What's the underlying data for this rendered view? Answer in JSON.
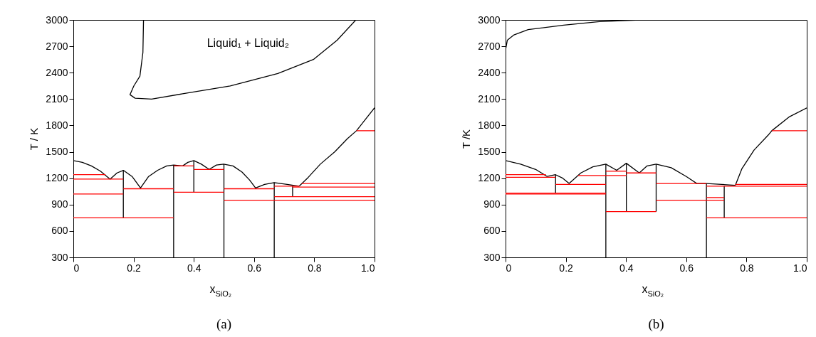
{
  "chart_data": [
    {
      "type": "line",
      "xlabel": "x$_{SiO₂}$",
      "ylabel": "T / K",
      "xlim": [
        0,
        1
      ],
      "ylim": [
        300,
        3000
      ],
      "xticks": [
        0,
        0.2,
        0.4,
        0.6,
        0.8,
        {
          "value": 1,
          "label": "1.0"
        }
      ],
      "yticks": [
        300,
        600,
        900,
        1200,
        1500,
        1800,
        2100,
        2400,
        2700,
        3000
      ],
      "annotations": [
        "Liquid₁ + Liquid₂",
        "(a)"
      ],
      "series": [
        {
          "color": "#000000",
          "x": [
            0.233,
            0.231,
            0.221,
            0.201,
            0.188,
            0.205,
            0.26,
            0.363,
            0.521,
            0.679,
            0.797,
            0.876,
            0.938
          ],
          "values": [
            3000,
            2630,
            2360,
            2250,
            2150,
            2110,
            2100,
            2160,
            2250,
            2390,
            2550,
            2770,
            3000
          ]
        },
        {
          "color": "#000000",
          "x": [
            0,
            0.03,
            0.06,
            0.09,
            0.122,
            0.145,
            0.166,
            0.195,
            0.223,
            0.25,
            0.28,
            0.31,
            0.333,
            0.363,
            0.38,
            0.4,
            0.425,
            0.451,
            0.475,
            0.499,
            0.53,
            0.56,
            0.585,
            0.605,
            0.635,
            0.667,
            0.71,
            0.75
          ],
          "values": [
            1400,
            1380,
            1340,
            1280,
            1190,
            1260,
            1290,
            1220,
            1090,
            1220,
            1290,
            1340,
            1350,
            1340,
            1380,
            1400,
            1360,
            1300,
            1350,
            1360,
            1340,
            1270,
            1180,
            1090,
            1130,
            1150,
            1130,
            1110
          ]
        },
        {
          "color": "#000000",
          "x": [
            0.75,
            0.78,
            0.82,
            0.868,
            0.91,
            0.94,
            1.0
          ],
          "values": [
            1110,
            1210,
            1360,
            1500,
            1650,
            1740,
            2000
          ]
        },
        {
          "color": "#000000",
          "x": [
            0.166,
            0.166
          ],
          "values": [
            1290,
            750
          ]
        },
        {
          "color": "#000000",
          "x": [
            0.333,
            0.333
          ],
          "values": [
            1350,
            300
          ]
        },
        {
          "color": "#000000",
          "x": [
            0.4,
            0.4
          ],
          "values": [
            1400,
            1040
          ]
        },
        {
          "color": "#000000",
          "x": [
            0.5,
            0.5
          ],
          "values": [
            1360,
            300
          ]
        },
        {
          "color": "#000000",
          "x": [
            0.667,
            0.667
          ],
          "values": [
            1150,
            300
          ]
        },
        {
          "color": "#000000",
          "x": [
            0.728,
            0.728
          ],
          "values": [
            1110,
            990
          ]
        },
        {
          "color": "#ff0000",
          "x": [
            0,
            0.107
          ],
          "values": [
            1240,
            1240
          ]
        },
        {
          "color": "#ff0000",
          "x": [
            0,
            0.166
          ],
          "values": [
            1190,
            1190
          ]
        },
        {
          "color": "#ff0000",
          "x": [
            0,
            0.166
          ],
          "values": [
            1020,
            1020
          ]
        },
        {
          "color": "#ff0000",
          "x": [
            0,
            0.333
          ],
          "values": [
            750,
            750
          ]
        },
        {
          "color": "#ff0000",
          "x": [
            0.166,
            0.333
          ],
          "values": [
            1080,
            1080
          ]
        },
        {
          "color": "#ff0000",
          "x": [
            0.333,
            0.4
          ],
          "values": [
            1340,
            1340
          ]
        },
        {
          "color": "#ff0000",
          "x": [
            0.4,
            0.5
          ],
          "values": [
            1300,
            1300
          ]
        },
        {
          "color": "#ff0000",
          "x": [
            0.333,
            0.5
          ],
          "values": [
            1040,
            1040
          ]
        },
        {
          "color": "#ff0000",
          "x": [
            0.5,
            0.667
          ],
          "values": [
            1080,
            1080
          ]
        },
        {
          "color": "#ff0000",
          "x": [
            0.5,
            1.0
          ],
          "values": [
            950,
            950
          ]
        },
        {
          "color": "#ff0000",
          "x": [
            0.667,
            0.75
          ],
          "values": [
            1110,
            1110
          ]
        },
        {
          "color": "#ff0000",
          "x": [
            0.758,
            1.0
          ],
          "values": [
            1140,
            1140
          ]
        },
        {
          "color": "#ff0000",
          "x": [
            0.728,
            1.0
          ],
          "values": [
            1100,
            1100
          ]
        },
        {
          "color": "#ff0000",
          "x": [
            0.667,
            1.0
          ],
          "values": [
            990,
            990
          ]
        },
        {
          "color": "#ff0000",
          "x": [
            0.94,
            1.0
          ],
          "values": [
            1740,
            1740
          ]
        }
      ]
    },
    {
      "type": "line",
      "xlabel": "x$_{SiO₂}$",
      "ylabel": "T /K",
      "xlim": [
        0,
        1
      ],
      "ylim": [
        300,
        3000
      ],
      "xticks": [
        0,
        0.2,
        0.4,
        0.6,
        0.8,
        {
          "value": 1,
          "label": "1.0"
        }
      ],
      "yticks": [
        300,
        600,
        900,
        1200,
        1500,
        1800,
        2100,
        2400,
        2700,
        3000
      ],
      "annotations": [
        "(b)"
      ],
      "series": [
        {
          "color": "#000000",
          "x": [
            0,
            0,
            0.006,
            0.028,
            0.075,
            0.193,
            0.312,
            0.446
          ],
          "values": [
            2100,
            2660,
            2770,
            2830,
            2890,
            2940,
            2980,
            3000
          ]
        },
        {
          "color": "#000000",
          "x": [
            0,
            0,
            0.05,
            0.1,
            0.138,
            0.166,
            0.19,
            0.211,
            0.25,
            0.29,
            0.333,
            0.369,
            0.401,
            0.444,
            0.47,
            0.5,
            0.55,
            0.6,
            0.635,
            0.667,
            0.763
          ],
          "values": [
            1420,
            1400,
            1360,
            1300,
            1220,
            1240,
            1200,
            1140,
            1260,
            1330,
            1360,
            1290,
            1370,
            1260,
            1340,
            1360,
            1320,
            1220,
            1140,
            1140,
            1120
          ]
        },
        {
          "color": "#000000",
          "x": [
            0.763,
            0.785,
            0.825,
            0.872,
            0.884,
            0.943,
            1.0
          ],
          "values": [
            1120,
            1310,
            1520,
            1690,
            1740,
            1900,
            2000
          ]
        },
        {
          "color": "#000000",
          "x": [
            0.166,
            0.166
          ],
          "values": [
            1240,
            1030
          ]
        },
        {
          "color": "#000000",
          "x": [
            0.333,
            0.333
          ],
          "values": [
            1360,
            300
          ]
        },
        {
          "color": "#000000",
          "x": [
            0.401,
            0.401
          ],
          "values": [
            1370,
            820
          ]
        },
        {
          "color": "#000000",
          "x": [
            0.5,
            0.5
          ],
          "values": [
            1360,
            820
          ]
        },
        {
          "color": "#000000",
          "x": [
            0.667,
            0.667
          ],
          "values": [
            1140,
            300
          ]
        },
        {
          "color": "#000000",
          "x": [
            0.726,
            0.726
          ],
          "values": [
            1110,
            750
          ]
        },
        {
          "color": "#ff0000",
          "x": [
            0,
            0.134
          ],
          "values": [
            1240,
            1240
          ]
        },
        {
          "color": "#ff0000",
          "x": [
            0,
            0.166
          ],
          "values": [
            1210,
            1210
          ]
        },
        {
          "color": "#ff0000",
          "x": [
            0,
            0.333
          ],
          "values": [
            1030,
            1030
          ]
        },
        {
          "color": "#ff0000",
          "x": [
            0,
            0.333
          ],
          "values": [
            1020,
            1020
          ]
        },
        {
          "color": "#ff0000",
          "x": [
            0.166,
            0.333
          ],
          "values": [
            1130,
            1130
          ]
        },
        {
          "color": "#ff0000",
          "x": [
            0.241,
            0.401
          ],
          "values": [
            1230,
            1230
          ]
        },
        {
          "color": "#ff0000",
          "x": [
            0.333,
            0.401
          ],
          "values": [
            1280,
            1280
          ]
        },
        {
          "color": "#ff0000",
          "x": [
            0.401,
            0.5
          ],
          "values": [
            1260,
            1260
          ]
        },
        {
          "color": "#ff0000",
          "x": [
            0.333,
            0.5
          ],
          "values": [
            820,
            820
          ]
        },
        {
          "color": "#ff0000",
          "x": [
            0.5,
            0.667
          ],
          "values": [
            1140,
            1140
          ]
        },
        {
          "color": "#ff0000",
          "x": [
            0.5,
            0.726
          ],
          "values": [
            950,
            950
          ]
        },
        {
          "color": "#ff0000",
          "x": [
            0.667,
            0.726
          ],
          "values": [
            980,
            980
          ]
        },
        {
          "color": "#ff0000",
          "x": [
            0.667,
            1.0
          ],
          "values": [
            1110,
            1110
          ]
        },
        {
          "color": "#ff0000",
          "x": [
            0.763,
            1.0
          ],
          "values": [
            1130,
            1130
          ]
        },
        {
          "color": "#ff0000",
          "x": [
            0.667,
            1.0
          ],
          "values": [
            750,
            750
          ]
        },
        {
          "color": "#ff0000",
          "x": [
            0.884,
            1.0
          ],
          "values": [
            1740,
            1740
          ]
        }
      ]
    }
  ]
}
